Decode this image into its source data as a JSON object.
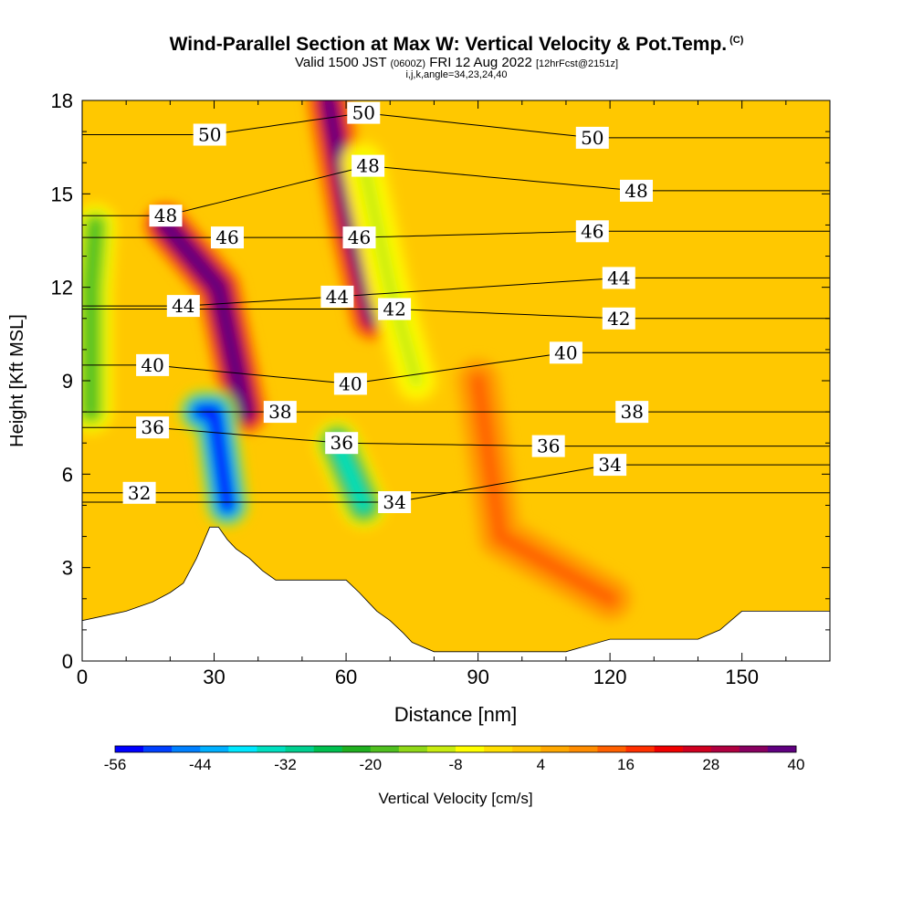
{
  "title": {
    "main": "Wind-Parallel Section at Max W: Vertical Velocity & Pot.Temp.",
    "copyright": "(C)",
    "valid_prefix": "Valid 1500 JST",
    "valid_utc": "(0600Z)",
    "valid_date": "FRI 12 Aug 2022",
    "forecast": "[12hrFcst@2151z]",
    "params": "i,j,k,angle=34,23,24,40"
  },
  "chart_data": {
    "type": "heatmap",
    "xlabel": "Distance [nm]",
    "ylabel": "Height [Kft MSL]",
    "xlim": [
      0,
      170
    ],
    "ylim": [
      0,
      18
    ],
    "x_ticks": [
      "0",
      "30",
      "60",
      "90",
      "120",
      "150"
    ],
    "y_ticks": [
      "0",
      "3",
      "6",
      "9",
      "12",
      "15",
      "18"
    ],
    "colorbar": {
      "label": "Vertical Velocity [cm/s]",
      "range": [
        -56,
        40
      ],
      "tick_labels": [
        "-56",
        "-44",
        "-32",
        "-20",
        "-8",
        "4",
        "16",
        "28",
        "40"
      ],
      "colors": [
        "#0000ff",
        "#0040ff",
        "#0080ff",
        "#00b0ff",
        "#00e8ff",
        "#00e0c0",
        "#00d090",
        "#00c050",
        "#20b020",
        "#50c020",
        "#90d818",
        "#c8ec10",
        "#ffff00",
        "#ffe000",
        "#ffc800",
        "#ffa800",
        "#ff8c00",
        "#ff6000",
        "#ff3000",
        "#f00000",
        "#d00020",
        "#b00040",
        "#880060",
        "#600080"
      ]
    },
    "background_value_cm_s": 2,
    "velocity_features": [
      {
        "kind": "updraft",
        "x": [
          19,
          31,
          37
        ],
        "z": [
          14,
          12,
          8
        ],
        "peak_cm_s": 40
      },
      {
        "kind": "downdraft",
        "x": [
          27,
          30,
          33
        ],
        "z": [
          8,
          8,
          5
        ],
        "peak_cm_s": -56
      },
      {
        "kind": "updraft",
        "x": [
          56,
          61,
          66
        ],
        "z": [
          18,
          14,
          11
        ],
        "peak_cm_s": 36
      },
      {
        "kind": "downdraft",
        "x": [
          58,
          61,
          64
        ],
        "z": [
          7,
          6,
          5
        ],
        "peak_cm_s": -34
      },
      {
        "kind": "downdraft",
        "x": [
          64,
          70,
          76
        ],
        "z": [
          16,
          12,
          9
        ],
        "peak_cm_s": -10
      },
      {
        "kind": "downdraft",
        "x": [
          3,
          2,
          2
        ],
        "z": [
          14,
          12,
          8
        ],
        "peak_cm_s": -18
      },
      {
        "kind": "updraft",
        "x": [
          90,
          95,
          120
        ],
        "z": [
          9,
          4,
          2
        ],
        "peak_cm_s": 12
      }
    ],
    "terrain_kft": {
      "x": [
        0,
        10,
        16,
        20,
        23,
        26,
        29,
        31,
        33,
        35,
        38,
        41,
        44,
        48,
        55,
        60,
        63,
        65,
        67,
        70,
        73,
        75,
        80,
        90,
        100,
        110,
        120,
        130,
        140,
        145,
        150,
        160,
        170
      ],
      "z": [
        1.3,
        1.6,
        1.9,
        2.2,
        2.5,
        3.3,
        4.3,
        4.3,
        3.9,
        3.6,
        3.3,
        2.9,
        2.6,
        2.6,
        2.6,
        2.6,
        2.2,
        1.9,
        1.6,
        1.3,
        0.9,
        0.6,
        0.3,
        0.3,
        0.3,
        0.3,
        0.7,
        0.7,
        0.7,
        1.0,
        1.6,
        1.6,
        1.6
      ]
    },
    "theta_contours_degC": [
      {
        "label": "32",
        "label_x": 13,
        "label_z": 5.4
      },
      {
        "label": "34",
        "label_x": 71,
        "label_z": 5.1
      },
      {
        "label": "34",
        "label_x": 120,
        "label_z": 6.3
      },
      {
        "label": "36",
        "label_x": 16,
        "label_z": 7.5
      },
      {
        "label": "36",
        "label_x": 59,
        "label_z": 7.0
      },
      {
        "label": "36",
        "label_x": 106,
        "label_z": 6.9
      },
      {
        "label": "38",
        "label_x": 45,
        "label_z": 8.0
      },
      {
        "label": "38",
        "label_x": 125,
        "label_z": 8.0
      },
      {
        "label": "40",
        "label_x": 16,
        "label_z": 9.5
      },
      {
        "label": "40",
        "label_x": 61,
        "label_z": 8.9
      },
      {
        "label": "40",
        "label_x": 110,
        "label_z": 9.9
      },
      {
        "label": "42",
        "label_x": 71,
        "label_z": 11.3
      },
      {
        "label": "42",
        "label_x": 122,
        "label_z": 11.0
      },
      {
        "label": "44",
        "label_x": 23,
        "label_z": 11.4
      },
      {
        "label": "44",
        "label_x": 58,
        "label_z": 11.7
      },
      {
        "label": "44",
        "label_x": 122,
        "label_z": 12.3
      },
      {
        "label": "46",
        "label_x": 33,
        "label_z": 13.6
      },
      {
        "label": "46",
        "label_x": 63,
        "label_z": 13.6
      },
      {
        "label": "46",
        "label_x": 116,
        "label_z": 13.8
      },
      {
        "label": "48",
        "label_x": 19,
        "label_z": 14.3
      },
      {
        "label": "48",
        "label_x": 65,
        "label_z": 15.9
      },
      {
        "label": "48",
        "label_x": 126,
        "label_z": 15.1
      },
      {
        "label": "50",
        "label_x": 29,
        "label_z": 16.9
      },
      {
        "label": "50",
        "label_x": 64,
        "label_z": 17.6
      },
      {
        "label": "50",
        "label_x": 116,
        "label_z": 16.8
      }
    ]
  }
}
